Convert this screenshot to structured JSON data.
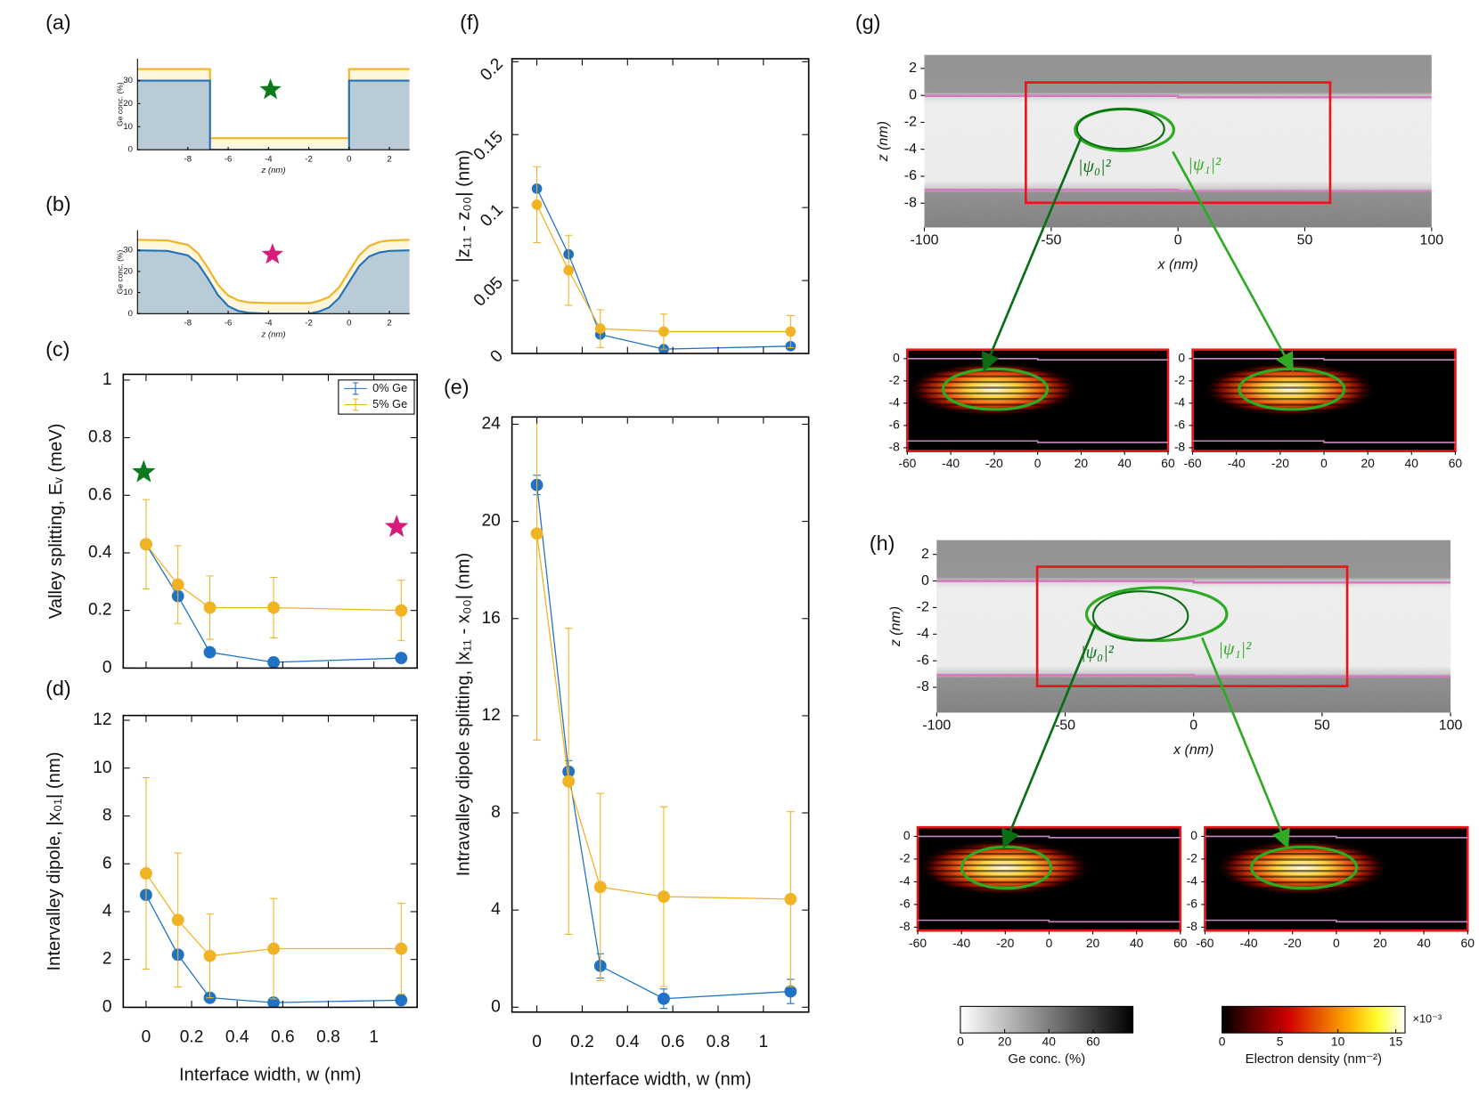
{
  "chart_data": [
    {
      "type": "line",
      "panel_label": "(a)",
      "xlabel": "z (nm)",
      "ylabel": "Ge conc. (%)",
      "xlim": [
        -10.5,
        3
      ],
      "xticks": [
        -8,
        -6,
        -4,
        -2,
        0,
        2
      ],
      "ylim": [
        0,
        39.5
      ],
      "yticks": [
        0,
        10,
        20,
        30
      ],
      "x": [
        -10.5,
        -6.9,
        -6.9,
        0,
        0,
        3
      ],
      "series": [
        {
          "color": "#f0b323",
          "fill": "#fff6dc",
          "values": [
            35,
            35,
            5,
            5,
            35,
            35
          ]
        },
        {
          "color": "#1f72b8",
          "fill": "#b9cbd6",
          "values": [
            30,
            30,
            0,
            0,
            30,
            30
          ]
        }
      ],
      "markers": [
        {
          "x": -3.9,
          "y": 26,
          "color": "#0e7a1e"
        }
      ]
    },
    {
      "type": "line",
      "panel_label": "(b)",
      "xlabel": "z (nm)",
      "ylabel": "Ge conc. (%)",
      "xlim": [
        -10.5,
        3
      ],
      "xticks": [
        -8,
        -6,
        -4,
        -2,
        0,
        2
      ],
      "ylim": [
        0,
        39.5
      ],
      "yticks": [
        0,
        10,
        20,
        30
      ],
      "x": [
        -10.5,
        -9,
        -8,
        -7.5,
        -7,
        -6.5,
        -6,
        -5.5,
        -5,
        -4,
        -3,
        -2,
        -1.5,
        -1,
        -0.5,
        0,
        0.5,
        1,
        1.5,
        2,
        3
      ],
      "series": [
        {
          "color": "#f0b323",
          "fill": "#fff6dc",
          "values": [
            35,
            34.7,
            32.6,
            28.7,
            21.6,
            13.7,
            8.6,
            6.3,
            5.4,
            5,
            5,
            5,
            6,
            7.9,
            12.4,
            20,
            27.6,
            32.1,
            34,
            34.7,
            35
          ]
        },
        {
          "color": "#1f72b8",
          "fill": "#b9cbd6",
          "values": [
            30,
            29.7,
            27.6,
            23.7,
            16.6,
            8.7,
            3.6,
            1.3,
            0.4,
            0,
            0,
            0,
            1,
            2.9,
            7.4,
            15,
            22.6,
            27.1,
            29,
            29.7,
            30
          ]
        }
      ],
      "markers": [
        {
          "x": -3.8,
          "y": 28,
          "color": "#d81b7a"
        }
      ]
    },
    {
      "type": "errorbar",
      "panel_label": "(c)",
      "ylabel": "Valley splitting, Eᵥ (meV)",
      "show_xtick_labels": false,
      "xlim": [
        -0.1,
        1.19
      ],
      "xticks": [
        0,
        0.2,
        0.4,
        0.6,
        0.8,
        1
      ],
      "ylim": [
        0,
        1.02
      ],
      "yticks": [
        0,
        0.2,
        0.4,
        0.6,
        0.8,
        1
      ],
      "x": [
        0,
        0.14,
        0.28,
        0.56,
        1.12
      ],
      "legend": "upper right",
      "series": [
        {
          "name": "0% Ge",
          "color": "#1f72c4",
          "values": [
            0.43,
            0.25,
            0.055,
            0.02,
            0.035
          ],
          "errors": [
            0.01,
            0.01,
            0.01,
            0.005,
            0.008
          ]
        },
        {
          "name": "5% Ge",
          "color": "#f0b323",
          "values": [
            0.43,
            0.29,
            0.21,
            0.21,
            0.2
          ],
          "errors": [
            0.155,
            0.135,
            0.11,
            0.105,
            0.105
          ]
        }
      ],
      "markers": [
        {
          "x": -0.01,
          "y": 0.68,
          "color": "#0e7a1e"
        },
        {
          "x": 1.1,
          "y": 0.49,
          "color": "#d81b7a"
        }
      ]
    },
    {
      "type": "errorbar",
      "panel_label": "(d)",
      "ylabel": "Intervalley dipole, |x₀₁| (nm)",
      "xlabel": "Interface width, w (nm)",
      "xlim": [
        -0.1,
        1.19
      ],
      "xticks": [
        0,
        0.2,
        0.4,
        0.6,
        0.8,
        1
      ],
      "ylim": [
        0,
        12.2
      ],
      "yticks": [
        0,
        2,
        4,
        6,
        8,
        10,
        12
      ],
      "x": [
        0,
        0.14,
        0.28,
        0.56,
        1.12
      ],
      "series": [
        {
          "color": "#1f72c4",
          "values": [
            4.7,
            2.2,
            0.4,
            0.2,
            0.3
          ],
          "errors": [
            0.2,
            0.15,
            0.1,
            0.08,
            0.1
          ]
        },
        {
          "color": "#f0b323",
          "values": [
            5.6,
            3.65,
            2.15,
            2.45,
            2.45
          ],
          "errors": [
            4,
            2.8,
            1.75,
            2.1,
            1.9
          ]
        }
      ]
    },
    {
      "type": "errorbar",
      "panel_label": "(f)",
      "ylabel": "|z₁₁ - z₀₀| (nm)",
      "show_xtick_labels": false,
      "ytick_rotation": -45,
      "xlim": [
        -0.11,
        1.2
      ],
      "xticks": [
        0,
        0.2,
        0.4,
        0.6,
        0.8,
        1
      ],
      "ylim": [
        0,
        0.202
      ],
      "yticks": [
        0,
        0.05,
        0.1,
        0.15,
        0.2
      ],
      "x": [
        0,
        0.14,
        0.28,
        0.56,
        1.12
      ],
      "series": [
        {
          "color": "#1f72c4",
          "values": [
            0.113,
            0.068,
            0.013,
            0.003,
            0.005
          ],
          "errors": [
            0.002,
            0.002,
            0.002,
            0.001,
            0.001
          ]
        },
        {
          "color": "#f0b323",
          "values": [
            0.102,
            0.057,
            0.017,
            0.015,
            0.015
          ],
          "errors": [
            0.026,
            0.024,
            0.013,
            0.012,
            0.011
          ]
        }
      ]
    },
    {
      "type": "errorbar",
      "panel_label": "(e)",
      "ylabel": "Intravalley dipole splitting, |x₁₁ - x₀₀| (nm)",
      "xlabel": "Interface width, w (nm)",
      "xlim": [
        -0.11,
        1.2
      ],
      "xticks": [
        0,
        0.2,
        0.4,
        0.6,
        0.8,
        1
      ],
      "ylim": [
        -0.2,
        24.3
      ],
      "yticks": [
        0,
        4,
        8,
        12,
        16,
        20,
        24
      ],
      "x": [
        0,
        0.14,
        0.28,
        0.56,
        1.12
      ],
      "series": [
        {
          "color": "#1f72c4",
          "values": [
            21.5,
            9.7,
            1.7,
            0.35,
            0.65
          ],
          "errors": [
            0.4,
            0.45,
            0.5,
            0.4,
            0.5
          ]
        },
        {
          "color": "#f0b323",
          "values": [
            19.5,
            9.3,
            4.95,
            4.55,
            4.45
          ],
          "errors": [
            8.5,
            6.3,
            3.85,
            3.7,
            3.6
          ]
        }
      ]
    },
    {
      "type": "heatmap",
      "panel_label": "(g)",
      "xlabel": "x (nm)",
      "ylabel": "z (nm)",
      "annotations": [
        "|ψ₀|²",
        "|ψ₁|²"
      ],
      "xlim": [
        -100,
        100
      ],
      "xticks": [
        -100,
        -50,
        0,
        50,
        100
      ],
      "ylim": [
        -9.8,
        3
      ],
      "yticks": [
        2,
        0,
        -2,
        -4,
        -6,
        -8
      ]
    },
    {
      "type": "heatmap",
      "xlim": [
        -60,
        60
      ],
      "xticks": [
        -60,
        -40,
        -20,
        0,
        20,
        40,
        60
      ],
      "ylim": [
        -8.3,
        0.8
      ],
      "yticks": [
        0,
        -2,
        -4,
        -6,
        -8
      ]
    },
    {
      "type": "heatmap",
      "xlim": [
        -60,
        60
      ],
      "xticks": [
        -60,
        -40,
        -20,
        0,
        20,
        40,
        60
      ],
      "ylim": [
        -8.3,
        0.8
      ],
      "yticks": [
        0,
        -2,
        -4,
        -6,
        -8
      ]
    },
    {
      "type": "heatmap",
      "panel_label": "(h)",
      "xlabel": "x (nm)",
      "ylabel": "z (nm)",
      "annotations": [
        "|ψ₀|²",
        "|ψ₁|²"
      ],
      "xlim": [
        -100,
        100
      ],
      "xticks": [
        -100,
        -50,
        0,
        50,
        100
      ],
      "ylim": [
        -9.9,
        3.07
      ],
      "yticks": [
        2,
        0,
        -2,
        -4,
        -6,
        -8
      ]
    },
    {
      "type": "heatmap",
      "xlim": [
        -60,
        60
      ],
      "xticks": [
        -60,
        -40,
        -20,
        0,
        20,
        40,
        60
      ],
      "ylim": [
        -8.3,
        0.8
      ],
      "yticks": [
        0,
        -2,
        -4,
        -6,
        -8
      ]
    },
    {
      "type": "heatmap",
      "xlim": [
        -60,
        60
      ],
      "xticks": [
        -60,
        -40,
        -20,
        0,
        20,
        40,
        60
      ],
      "ylim": [
        -8.3,
        0.8
      ],
      "yticks": [
        0,
        -2,
        -4,
        -6,
        -8
      ]
    },
    {
      "type": "colorbar",
      "colormap": "gray",
      "xlabel": "Ge conc. (%)",
      "xlim": [
        0,
        78
      ],
      "xticks": [
        0,
        20,
        40,
        60
      ]
    },
    {
      "type": "colorbar",
      "colormap": "hot",
      "xlabel": "Electron density (nm⁻²)",
      "scale_label": "×10⁻³",
      "xlim": [
        0,
        15.8
      ],
      "xticks": [
        0,
        5,
        10,
        15
      ]
    }
  ]
}
